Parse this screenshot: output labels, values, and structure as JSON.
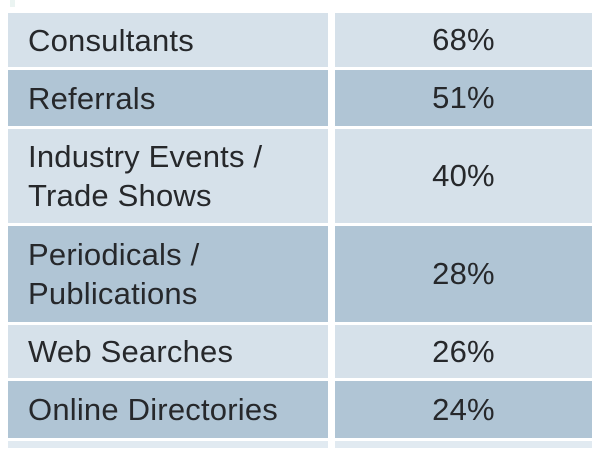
{
  "table": {
    "rows": [
      {
        "label": "Consultants",
        "value": "68%",
        "shade": "light"
      },
      {
        "label": "Referrals",
        "value": "51%",
        "shade": "dark"
      },
      {
        "label": "Industry Events /\nTrade Shows",
        "value": "40%",
        "shade": "light"
      },
      {
        "label": "Periodicals /\nPublications",
        "value": "28%",
        "shade": "dark"
      },
      {
        "label": "Web Searches",
        "value": "26%",
        "shade": "light"
      },
      {
        "label": "Online Directories",
        "value": "24%",
        "shade": "dark"
      }
    ],
    "partial_next_row_visible": true
  },
  "chart_data": {
    "type": "table",
    "categories": [
      "Consultants",
      "Referrals",
      "Industry Events / Trade Shows",
      "Periodicals / Publications",
      "Web Searches",
      "Online Directories"
    ],
    "values": [
      68,
      51,
      40,
      28,
      26,
      24
    ],
    "value_format": "percent",
    "title": "",
    "xlabel": "",
    "ylabel": "",
    "legend": false,
    "layout": "two-column table, alternating row shading, white gaps between cells"
  },
  "colors": {
    "background": "#ffffff",
    "row_light": "#d6e1ea",
    "row_dark": "#b0c5d5",
    "text": "#26282b",
    "partial_row": "#e1eaf1"
  }
}
